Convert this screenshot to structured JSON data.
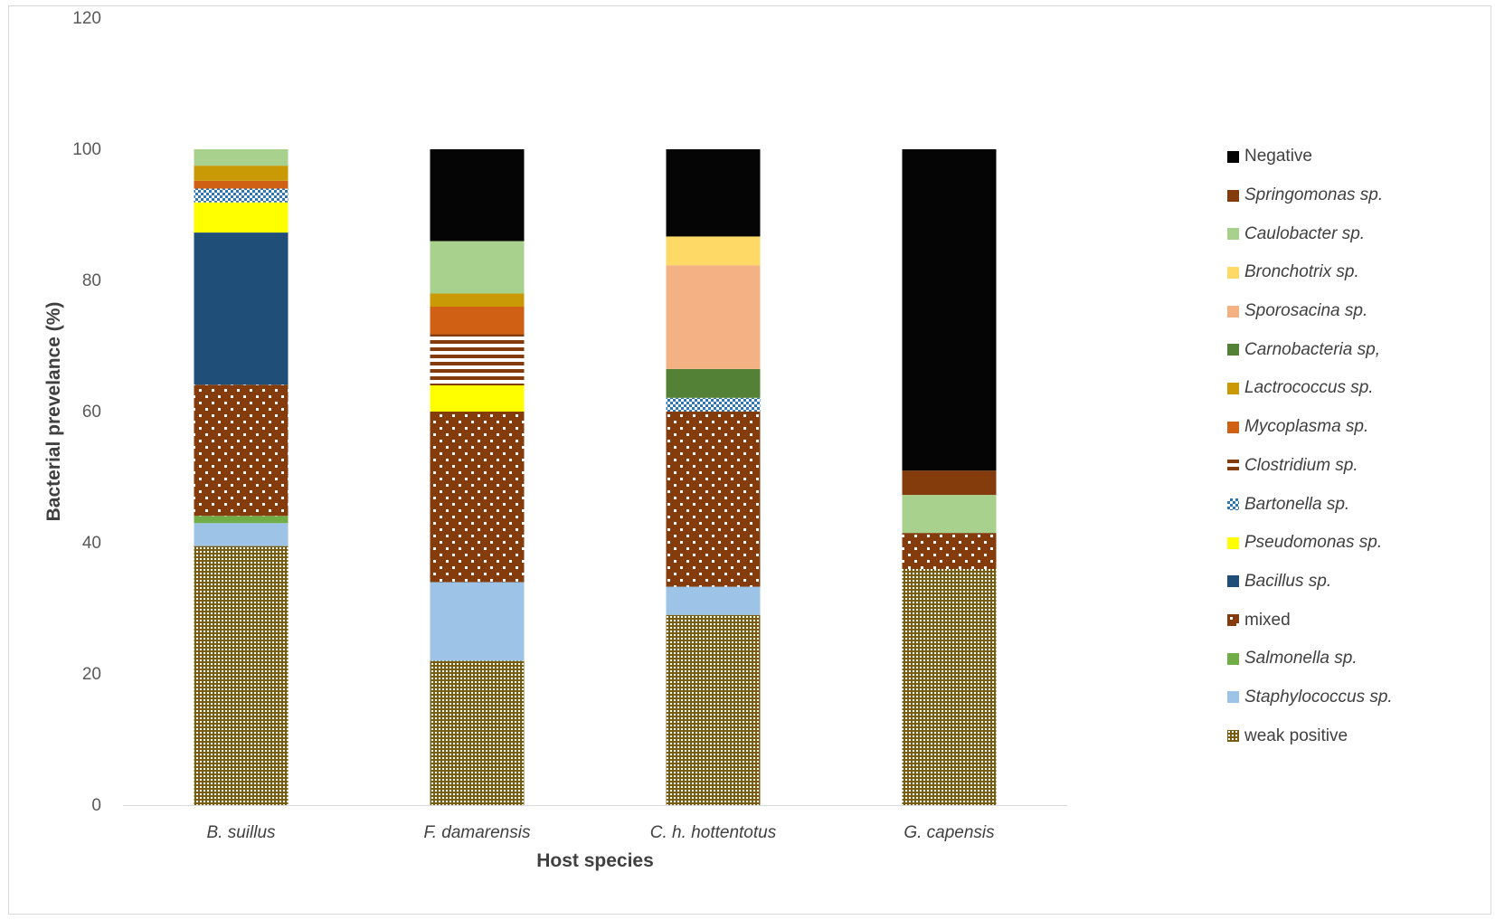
{
  "chart_data": {
    "type": "bar",
    "stacked": true,
    "title": "",
    "xlabel": "Host species",
    "ylabel": "Bacterial prevelance (%)",
    "ylim": [
      0,
      120
    ],
    "yticks": [
      0,
      20,
      40,
      60,
      80,
      100,
      120
    ],
    "grid": false,
    "legend_position": "right",
    "categories": [
      "B. suillus",
      "F. damarensis",
      "C. h. hottentotus",
      "G. capensis"
    ],
    "series": [
      {
        "name": "weak positive",
        "italic": false,
        "color": "#7a5c10",
        "pattern": "dense-dots",
        "values": [
          39.5,
          22.0,
          29.0,
          36.0
        ]
      },
      {
        "name": "Staphylococcus sp.",
        "italic": true,
        "color": "#9dc3e6",
        "pattern": "solid",
        "values": [
          3.5,
          12.0,
          4.3,
          0
        ]
      },
      {
        "name": "Salmonella sp.",
        "italic": true,
        "color": "#70ad47",
        "pattern": "solid",
        "values": [
          1.1,
          0,
          0,
          0
        ]
      },
      {
        "name": "mixed",
        "italic": false,
        "color": "#843c0c",
        "pattern": "sparse-dots",
        "values": [
          20.0,
          26.0,
          26.7,
          5.5
        ]
      },
      {
        "name": "Bacillus sp.",
        "italic": true,
        "color": "#1f4e79",
        "pattern": "solid",
        "values": [
          23.2,
          0,
          0,
          0
        ]
      },
      {
        "name": "Pseudomonas sp.",
        "italic": true,
        "color": "#ffff00",
        "pattern": "solid",
        "values": [
          4.6,
          4.0,
          0,
          0
        ]
      },
      {
        "name": "Bartonella sp.",
        "italic": true,
        "color": "#2e75b6",
        "pattern": "checker",
        "values": [
          2.1,
          0,
          2.1,
          0
        ]
      },
      {
        "name": "Clostridium sp.",
        "italic": true,
        "color": "#843c0c",
        "pattern": "stripes",
        "values": [
          0,
          7.8,
          0,
          0
        ]
      },
      {
        "name": "Mycoplasma sp.",
        "italic": true,
        "color": "#d06014",
        "pattern": "solid",
        "values": [
          1.2,
          4.2,
          0,
          0
        ]
      },
      {
        "name": "Lactrococcus sp.",
        "italic": true,
        "color": "#c99a06",
        "pattern": "solid",
        "values": [
          2.3,
          2.0,
          0,
          0
        ]
      },
      {
        "name": "Carnobacteria sp,",
        "italic": true,
        "color": "#538135",
        "pattern": "solid",
        "values": [
          0,
          0,
          4.4,
          0
        ]
      },
      {
        "name": "Sporosacina sp.",
        "italic": true,
        "color": "#f4b183",
        "pattern": "solid",
        "values": [
          0,
          0,
          15.8,
          0
        ]
      },
      {
        "name": "Bronchotrix sp.",
        "italic": true,
        "color": "#ffd966",
        "pattern": "solid",
        "values": [
          0,
          0,
          4.4,
          0
        ]
      },
      {
        "name": "Caulobacter sp.",
        "italic": true,
        "color": "#a9d18e",
        "pattern": "solid",
        "values": [
          2.5,
          8.0,
          0,
          5.8
        ]
      },
      {
        "name": "Springomonas sp.",
        "italic": true,
        "color": "#843c0c",
        "pattern": "solid",
        "values": [
          0,
          0,
          0,
          3.7
        ]
      },
      {
        "name": "Negative",
        "italic": false,
        "color": "#050505",
        "pattern": "solid",
        "values": [
          0,
          14.0,
          13.3,
          49.0
        ]
      }
    ]
  }
}
